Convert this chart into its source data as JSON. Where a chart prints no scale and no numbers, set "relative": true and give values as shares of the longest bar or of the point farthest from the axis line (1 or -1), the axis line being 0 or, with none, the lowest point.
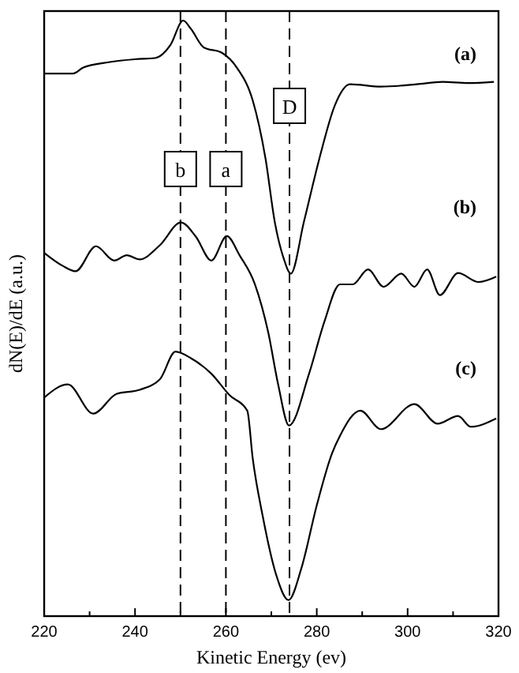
{
  "chart_data": {
    "type": "line",
    "relative": true,
    "xlabel": "Kinetic Energy (ev)",
    "ylabel": "dN(E)/dE (a.u.)",
    "xlim": [
      220,
      320
    ],
    "xticks": [
      220,
      {
        "value": 230,
        "label": null
      },
      240,
      {
        "value": 250,
        "label": null
      },
      260,
      {
        "value": 270,
        "label": null
      },
      280,
      {
        "value": 290,
        "label": null
      },
      300,
      {
        "value": 310,
        "label": null
      },
      320
    ],
    "marker": "none",
    "line_style": "solid",
    "grid": false,
    "ref_lines": [
      {
        "axis": "x",
        "value": 250,
        "label": "b",
        "line_style": "dashed",
        "color": "#000000"
      },
      {
        "axis": "x",
        "value": 260,
        "label": "a",
        "line_style": "dashed",
        "color": "#000000"
      },
      {
        "axis": "x",
        "value": 274,
        "label": "D",
        "line_style": "dashed",
        "color": "#000000"
      }
    ],
    "series": [
      {
        "name": "(a)",
        "color": "#000000",
        "x": [
          220,
          226.3,
          228.6,
          234.2,
          240,
          244.4,
          247.8,
          250.6,
          252.3,
          255.1,
          259.1,
          262.5,
          265.9,
          268.7,
          270.8,
          272.7,
          274.3,
          277.2,
          280.6,
          284,
          287.3,
          294.1,
          302,
          307.7,
          313.3,
          319
        ],
        "values": [
          0.911,
          0.911,
          0.921,
          0.93,
          0.935,
          0.937,
          0.959,
          1,
          0.986,
          0.955,
          0.946,
          0.92,
          0.866,
          0.769,
          0.66,
          0.601,
          0.575,
          0.663,
          0.769,
          0.858,
          0.893,
          0.889,
          0.893,
          0.897,
          0.895,
          0.897
        ]
      },
      {
        "name": "(b)",
        "color": "#000000",
        "x": [
          220,
          224.1,
          226.9,
          231.4,
          235.4,
          238.2,
          241,
          245.5,
          250.1,
          253.4,
          256.8,
          260.2,
          263,
          266.4,
          269.3,
          271.5,
          273.9,
          278.3,
          281.7,
          285.1,
          287.9,
          291.3,
          294.7,
          298.6,
          301.5,
          304.3,
          307.1,
          311.1,
          315.6,
          319.5
        ],
        "values": [
          0.61,
          0.588,
          0.579,
          0.621,
          0.597,
          0.606,
          0.599,
          0.623,
          0.661,
          0.637,
          0.597,
          0.638,
          0.606,
          0.557,
          0.477,
          0.389,
          0.32,
          0.407,
          0.495,
          0.557,
          0.557,
          0.582,
          0.553,
          0.575,
          0.553,
          0.582,
          0.539,
          0.576,
          0.561,
          0.57
        ]
      },
      {
        "name": "(c)",
        "color": "#000000",
        "x": [
          220,
          225.2,
          230.8,
          235.9,
          241,
          245.5,
          248.9,
          252.3,
          256.8,
          260.8,
          264.7,
          265.9,
          268.1,
          271,
          273.8,
          276.6,
          280,
          283.4,
          285,
          289.6,
          294.1,
          301.5,
          306.6,
          311.1,
          313.9,
          319.5
        ],
        "values": [
          0.367,
          0.389,
          0.34,
          0.373,
          0.38,
          0.398,
          0.444,
          0.433,
          0.407,
          0.371,
          0.345,
          0.265,
          0.168,
          0.071,
          0.027,
          0.08,
          0.186,
          0.274,
          0.301,
          0.345,
          0.314,
          0.356,
          0.323,
          0.336,
          0.318,
          0.332
        ]
      }
    ]
  }
}
